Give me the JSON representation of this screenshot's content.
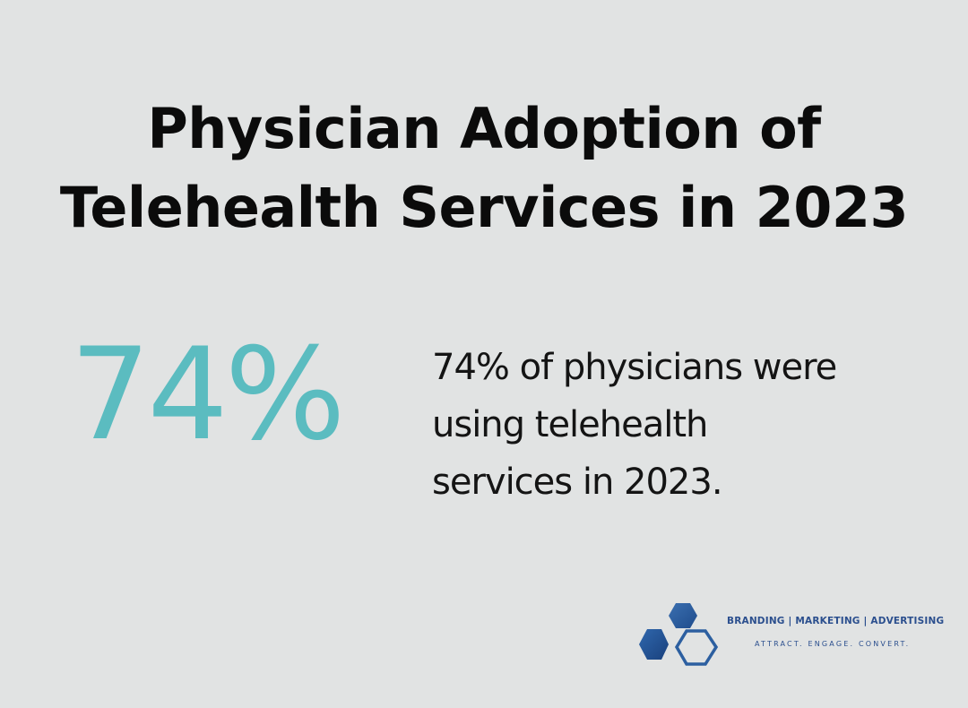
{
  "header": {
    "title_line_1": "Physician Adoption of",
    "title_line_2": "Telehealth Services in 2023"
  },
  "stat": {
    "value": "74%",
    "description_line_1": "74% of physicians were",
    "description_line_2": "using telehealth",
    "description_line_3": "services in 2023."
  },
  "logo": {
    "icon": "hexagon-cluster-icon",
    "tagline_primary": "BRANDING | MARKETING | ADVERTISING",
    "tagline_secondary": "ATTRACT. ENGAGE. CONVERT."
  },
  "colors": {
    "background": "#e1e3e3",
    "accent": "#5bbcc0",
    "brand_blue": "#2b4f8e"
  }
}
